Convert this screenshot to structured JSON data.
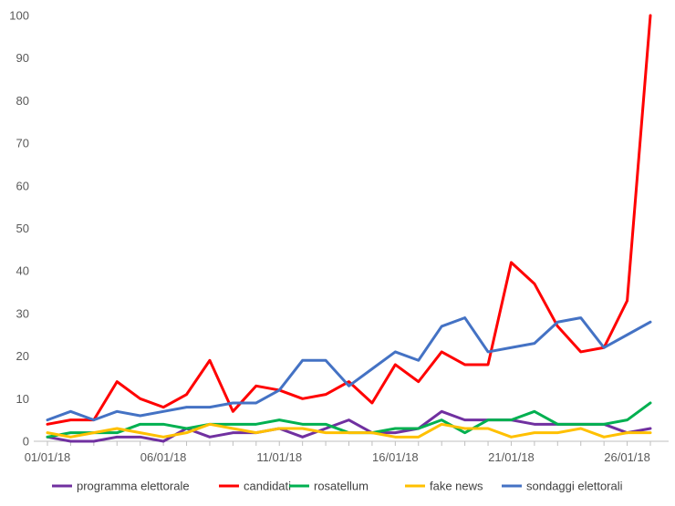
{
  "chart_data": {
    "type": "line",
    "title": "",
    "xlabel": "",
    "ylabel": "",
    "ylim": [
      0,
      100
    ],
    "yticks": [
      0,
      10,
      20,
      30,
      40,
      50,
      60,
      70,
      80,
      90,
      100
    ],
    "x": [
      "01/01/18",
      "02/01/18",
      "03/01/18",
      "04/01/18",
      "05/01/18",
      "06/01/18",
      "07/01/18",
      "08/01/18",
      "09/01/18",
      "10/01/18",
      "11/01/18",
      "12/01/18",
      "13/01/18",
      "14/01/18",
      "15/01/18",
      "16/01/18",
      "17/01/18",
      "18/01/18",
      "19/01/18",
      "20/01/18",
      "21/01/18",
      "22/01/18",
      "23/01/18",
      "24/01/18",
      "25/01/18",
      "26/01/18",
      "27/01/18"
    ],
    "xticks": [
      "01/01/18",
      "06/01/18",
      "11/01/18",
      "16/01/18",
      "21/01/18",
      "26/01/18"
    ],
    "grid": false,
    "legend_position": "bottom",
    "series": [
      {
        "name": "programma elettorale",
        "color": "#7030a0",
        "values": [
          1,
          0,
          0,
          1,
          1,
          0,
          3,
          1,
          2,
          2,
          3,
          1,
          3,
          5,
          2,
          2,
          3,
          7,
          5,
          5,
          5,
          4,
          4,
          4,
          4,
          2,
          3
        ]
      },
      {
        "name": "candidati",
        "color": "#ff0000",
        "values": [
          4,
          5,
          5,
          14,
          10,
          8,
          11,
          19,
          7,
          13,
          12,
          10,
          11,
          14,
          9,
          18,
          14,
          21,
          18,
          18,
          42,
          37,
          27,
          21,
          22,
          33,
          100
        ]
      },
      {
        "name": "rosatellum",
        "color": "#00b050",
        "values": [
          1,
          2,
          2,
          2,
          4,
          4,
          3,
          4,
          4,
          4,
          5,
          4,
          4,
          2,
          2,
          3,
          3,
          5,
          2,
          5,
          5,
          7,
          4,
          4,
          4,
          5,
          9
        ]
      },
      {
        "name": "fake news",
        "color": "#ffc000",
        "values": [
          2,
          1,
          2,
          3,
          2,
          1,
          2,
          4,
          3,
          2,
          3,
          3,
          2,
          2,
          2,
          1,
          1,
          4,
          3,
          3,
          1,
          2,
          2,
          3,
          1,
          2,
          2
        ]
      },
      {
        "name": "sondaggi elettorali",
        "color": "#4472c4",
        "values": [
          5,
          7,
          5,
          7,
          6,
          7,
          8,
          8,
          9,
          9,
          12,
          19,
          19,
          13,
          17,
          21,
          19,
          27,
          29,
          21,
          22,
          23,
          28,
          29,
          22,
          25,
          28
        ]
      }
    ]
  }
}
